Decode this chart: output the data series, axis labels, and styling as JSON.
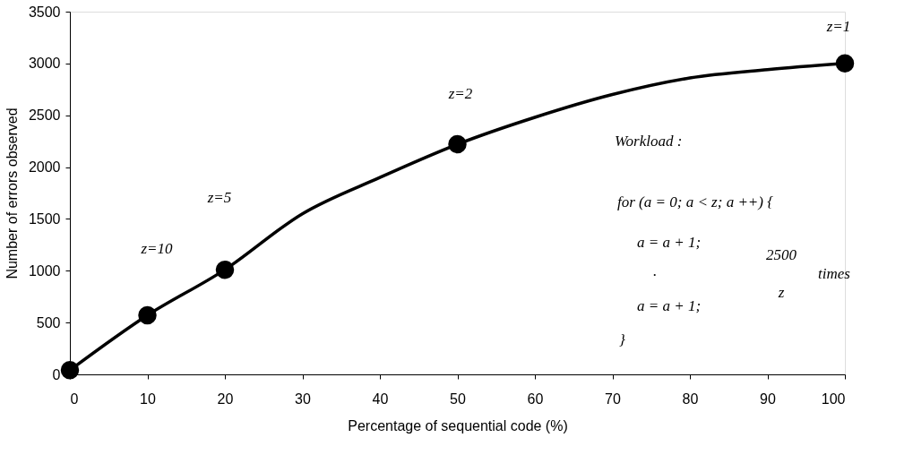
{
  "chart_data": {
    "type": "line",
    "xlabel": "Percentage of sequential code (%)",
    "ylabel": "Number of errors observed",
    "xlim": [
      0,
      100
    ],
    "xticks": [
      0,
      10,
      20,
      30,
      40,
      50,
      60,
      70,
      80,
      90,
      100
    ],
    "ylim": [
      0,
      3500
    ],
    "yticks": [
      0,
      500,
      1000,
      1500,
      2000,
      2500,
      3000,
      3500
    ],
    "grid": false,
    "series": [
      {
        "type": "line",
        "color": "#000000",
        "line_style": "solid",
        "marker": "none",
        "x": [
          0,
          10,
          20,
          30,
          40,
          50,
          60,
          70,
          80,
          90,
          100
        ],
        "values": [
          40,
          570,
          1010,
          1550,
          1900,
          2220,
          2480,
          2700,
          2860,
          2940,
          3000
        ]
      },
      {
        "type": "scatter",
        "color": "#000000",
        "marker": "circle",
        "x": [
          0,
          10,
          20,
          50,
          100
        ],
        "values": [
          40,
          570,
          1010,
          2220,
          3000
        ]
      }
    ],
    "annotations": [
      "z=10",
      "z=5",
      "z=2",
      "z=1",
      "Workload :",
      "for (a = 0; a < z; a ++) {",
      "a = a + 1;",
      ".",
      "a = a + 1;",
      "}",
      "2500",
      "z",
      "times"
    ]
  }
}
